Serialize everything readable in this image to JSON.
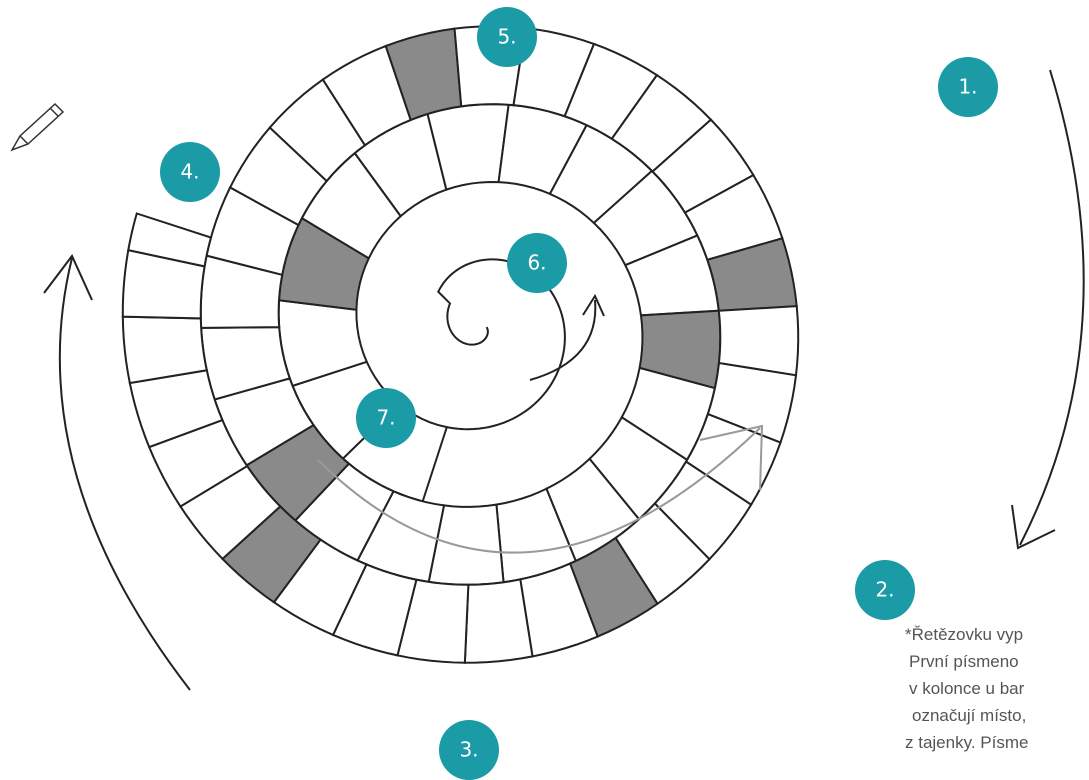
{
  "labels": [
    "1.",
    "2.",
    "3.",
    "4.",
    "5.",
    "6.",
    "7."
  ],
  "note": {
    "lines": [
      "*Řetězovku vyp",
      "První písmeno",
      "v kolonce u bar",
      "označují místo,",
      "z tajenky. Písme"
    ]
  }
}
